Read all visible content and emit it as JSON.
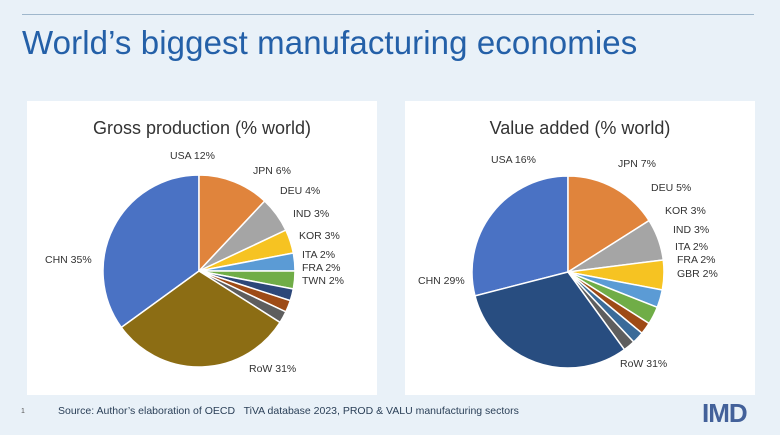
{
  "header": {
    "title": "World’s biggest manufacturing economies"
  },
  "footer": {
    "slide_number": "1",
    "source": "Source: Author’s elaboration of OECD   TiVA database 2023, PROD & VALU manufacturing sectors",
    "logo_text": "IMD"
  },
  "chart_data": [
    {
      "type": "pie",
      "title": "Gross production  (% world)",
      "slices": [
        {
          "label": "CHN 35%",
          "value": 35,
          "color": "#4a72c4"
        },
        {
          "label": "USA 12%",
          "value": 12,
          "color": "#e0843c"
        },
        {
          "label": "JPN 6%",
          "value": 6,
          "color": "#a5a5a5"
        },
        {
          "label": "DEU 4%",
          "value": 4,
          "color": "#f6c322"
        },
        {
          "label": "IND 3%",
          "value": 3,
          "color": "#5b9bd5"
        },
        {
          "label": "KOR 3%",
          "value": 3,
          "color": "#70ad47"
        },
        {
          "label": "ITA 2%",
          "value": 2,
          "color": "#2c4779"
        },
        {
          "label": "FRA 2%",
          "value": 2,
          "color": "#9e4b16"
        },
        {
          "label": "TWN 2%",
          "value": 2,
          "color": "#5e5e5e"
        },
        {
          "label": "RoW 31%",
          "value": 31,
          "color": "#8c6d14"
        }
      ]
    },
    {
      "type": "pie",
      "title": "Value added (% world)",
      "slices": [
        {
          "label": "CHN 29%",
          "value": 29,
          "color": "#4a72c4"
        },
        {
          "label": "USA 16%",
          "value": 16,
          "color": "#e0843c"
        },
        {
          "label": "JPN 7%",
          "value": 7,
          "color": "#a5a5a5"
        },
        {
          "label": "DEU 5%",
          "value": 5,
          "color": "#f6c322"
        },
        {
          "label": "KOR 3%",
          "value": 3,
          "color": "#5b9bd5"
        },
        {
          "label": "IND 3%",
          "value": 3,
          "color": "#70ad47"
        },
        {
          "label": "ITA 2%",
          "value": 2,
          "color": "#9e4b16"
        },
        {
          "label": "FRA 2%",
          "value": 2,
          "color": "#3a6b99"
        },
        {
          "label": "GBR 2%",
          "value": 2,
          "color": "#5e5e5e"
        },
        {
          "label": "RoW 31%",
          "value": 31,
          "color": "#284d80"
        }
      ]
    }
  ]
}
